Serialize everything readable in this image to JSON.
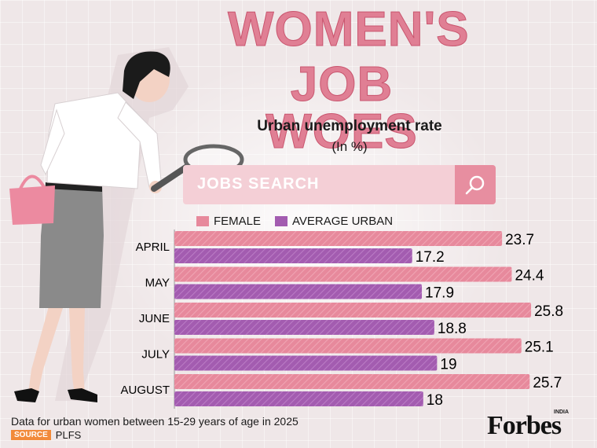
{
  "header": {
    "title_line1": "WOMEN'S",
    "title_line2": "JOB WOES",
    "subtitle": "Urban unemployment rate",
    "unit": "(In %)"
  },
  "search": {
    "label": "JOBS SEARCH",
    "icon": "search-icon"
  },
  "legend": {
    "female": "FEMALE",
    "average": "AVERAGE URBAN"
  },
  "colors": {
    "female": "#e7899c",
    "average": "#a35cb0",
    "title": "#e07f94",
    "background": "#efe7e8"
  },
  "chart_data": {
    "type": "bar",
    "orientation": "horizontal",
    "categories": [
      "APRIL",
      "MAY",
      "JUNE",
      "JULY",
      "AUGUST"
    ],
    "series": [
      {
        "name": "FEMALE",
        "values": [
          23.7,
          24.4,
          25.8,
          25.1,
          25.7
        ],
        "labels": [
          "23.7",
          "24.4",
          "25.8",
          "25.1",
          "25.7"
        ]
      },
      {
        "name": "AVERAGE URBAN",
        "values": [
          17.2,
          17.9,
          18.8,
          19,
          18
        ],
        "labels": [
          "17.2",
          "17.9",
          "18.8",
          "19",
          "18"
        ]
      }
    ],
    "title": "Urban unemployment rate",
    "unit": "(In %)",
    "legend_position": "top",
    "grid": false
  },
  "footer": {
    "note": "Data for urban women between 15-29 years of age in 2025",
    "source_label": "SOURCE",
    "source": "PLFS",
    "brand": "Forbes",
    "brand_sup": "INDIA"
  }
}
